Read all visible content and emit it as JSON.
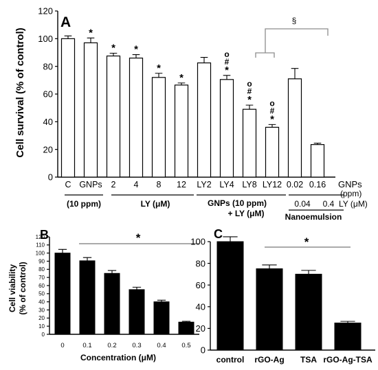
{
  "panel_labels": {
    "a": "A",
    "b": "B",
    "c": "C"
  },
  "chart_data": [
    {
      "panel": "A",
      "type": "bar",
      "ylabel": "Cell survival (% of control)",
      "ylim": [
        0,
        120
      ],
      "yticks": [
        "0",
        "20",
        "40",
        "60",
        "80",
        "100",
        "120"
      ],
      "categories": [
        "C",
        "GNPs",
        "2",
        "4",
        "8",
        "12",
        "LY2",
        "LY4",
        "LY8",
        "LY12",
        "0.02",
        "0.16"
      ],
      "values": [
        100,
        97,
        87.5,
        86,
        72,
        66.5,
        82.5,
        70.5,
        49,
        36,
        71,
        23.5
      ],
      "errors": [
        2,
        3.5,
        2,
        2.5,
        3,
        1.5,
        4,
        3,
        3,
        2,
        7.5,
        1
      ],
      "markers": [
        "",
        "*",
        "*",
        "*",
        "*",
        "*",
        "",
        "*",
        "*",
        "*",
        "",
        ""
      ],
      "hash_marks": [
        "",
        "",
        "",
        "",
        "",
        "",
        "",
        "o\n#",
        "o\n#",
        "o\n#",
        "",
        ""
      ],
      "unit_label": "GNPs",
      "unit_label2": "(ppm)",
      "group_labels": [
        "(10 ppm)",
        "LY (μM)",
        "GNPs (10 ppm)",
        "+ LY (μM)",
        "Nanoemulsion"
      ],
      "nano_ly_values": [
        "0.04",
        "0.4"
      ],
      "nano_ly_unit": "LY (μM)",
      "section_mark": "§"
    },
    {
      "panel": "B",
      "type": "bar",
      "ylabel": "Cell viability",
      "ylabel2": "(% of control)",
      "xlabel": "Concentration (μM)",
      "ylim": [
        0,
        120
      ],
      "yticks": [
        "0",
        "10",
        "20",
        "30",
        "40",
        "50",
        "60",
        "70",
        "80",
        "90",
        "100",
        "110",
        "120"
      ],
      "categories": [
        "0",
        "0.1",
        "0.2",
        "0.3",
        "0.4",
        "0.5"
      ],
      "values": [
        100,
        90.5,
        75,
        55,
        40,
        15
      ],
      "errors": [
        4.5,
        4,
        3.5,
        3,
        2,
        1
      ],
      "significance": "*"
    },
    {
      "panel": "C",
      "type": "bar",
      "ylim": [
        0,
        100
      ],
      "yticks": [
        "0",
        "20",
        "40",
        "60",
        "80",
        "100"
      ],
      "categories": [
        "control",
        "rGO-Ag",
        "TSA",
        "rGO-Ag-TSA"
      ],
      "values": [
        100,
        75,
        70,
        25
      ],
      "errors": [
        4.5,
        3.5,
        3.5,
        1.5
      ],
      "significance": "*"
    }
  ]
}
